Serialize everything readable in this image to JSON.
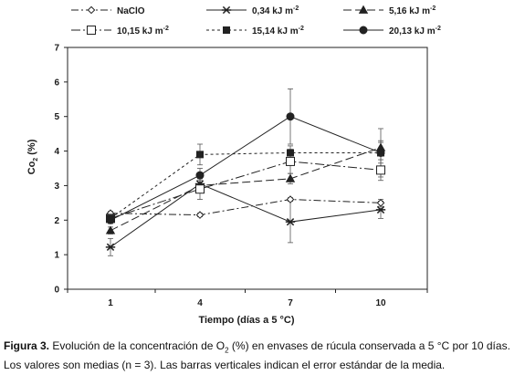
{
  "chart_data": {
    "type": "line",
    "xlabel": "Tiempo (días a 5 °C)",
    "ylabel_main": "Co",
    "ylabel_sub": "2",
    "ylabel_tail": " (%)",
    "ylim": [
      0,
      7
    ],
    "yticks": [
      "0",
      "1",
      "2",
      "3",
      "4",
      "5",
      "6",
      "7"
    ],
    "categories": [
      "1",
      "4",
      "7",
      "10"
    ],
    "grid": false,
    "legend_placement": "top",
    "series": [
      {
        "name": "NaClO",
        "unit": "",
        "marker": "diamond-open",
        "dash": "8,3,2,3",
        "color": "#222222",
        "values": [
          2.2,
          2.15,
          2.6,
          2.5
        ],
        "errors": [
          0.05,
          0.05,
          0.05,
          0.1
        ]
      },
      {
        "name": "0,34 kJ m",
        "unit": "-2",
        "marker": "star",
        "dash": "",
        "color": "#222222",
        "values": [
          1.22,
          3.05,
          1.95,
          2.3
        ],
        "errors": [
          0.25,
          0.2,
          0.6,
          0.25
        ]
      },
      {
        "name": "5,16 kJ m",
        "unit": "-2",
        "marker": "triangle",
        "dash": "9,4",
        "color": "#222222",
        "values": [
          1.7,
          3.0,
          3.2,
          4.1
        ],
        "errors": [
          0.1,
          0.15,
          0.15,
          0.2
        ]
      },
      {
        "name": "10,15 kJ m",
        "unit": "-2",
        "marker": "square-open",
        "dash": "10,3,2,3",
        "color": "#222222",
        "values": [
          2.05,
          2.9,
          3.7,
          3.45
        ],
        "errors": [
          0.1,
          0.3,
          0.35,
          0.3
        ]
      },
      {
        "name": "15,14 kJ m",
        "unit": "-2",
        "marker": "square",
        "dash": "3,3",
        "color": "#222222",
        "values": [
          2.05,
          3.9,
          3.95,
          3.95
        ],
        "errors": [
          0.1,
          0.3,
          0.2,
          0.7
        ]
      },
      {
        "name": "20,13 kJ m",
        "unit": "-2",
        "marker": "circle",
        "dash": "",
        "color": "#222222",
        "values": [
          2.0,
          3.3,
          5.0,
          3.95
        ],
        "errors": [
          0.1,
          0.2,
          0.8,
          0.3
        ]
      }
    ]
  },
  "caption": {
    "lead": "Figura 3.",
    "part1": " Evolución de la concentración de O",
    "sub": "2",
    "part2": " (%) en envases de rúcula conservada a 5 °C por 10 días. Los valores son medias (n = 3). Las barras verticales indican el error estándar de la media."
  }
}
